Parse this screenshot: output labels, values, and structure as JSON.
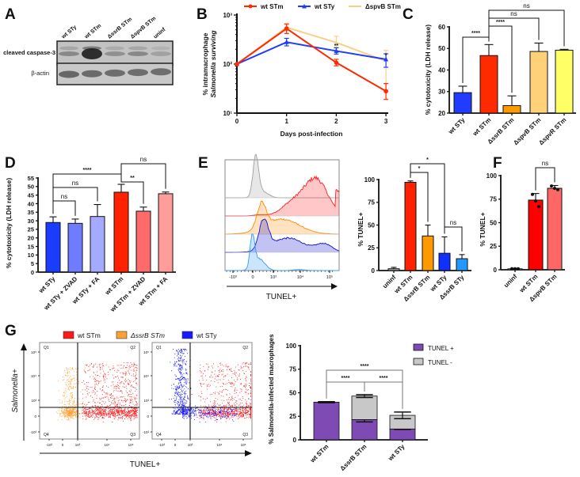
{
  "panel_labels": [
    "A",
    "B",
    "C",
    "D",
    "E",
    "F",
    "G"
  ],
  "chart_data": [
    {
      "panel": "A",
      "type": "blot",
      "lanes": [
        "wt STy",
        "wt STm",
        "ΔssrB STm",
        "ΔspvB STm",
        "uninf"
      ],
      "rows": [
        "cleaved caspase-3",
        "β-actin"
      ],
      "band_intensity": {
        "cleaved caspase-3": [
          0.35,
          0.9,
          0.3,
          0.35,
          0.2
        ],
        "β-actin": [
          0.65,
          0.62,
          0.6,
          0.6,
          0.6
        ]
      }
    },
    {
      "panel": "B",
      "type": "line",
      "x": [
        0,
        1,
        2,
        3
      ],
      "xticks": [
        0,
        1,
        2,
        3
      ],
      "xlabel": "Days post-infection",
      "ylabel": [
        "% intramacrophage",
        "Salmonella surviving"
      ],
      "yscale": "log",
      "ylim": [
        10,
        1000
      ],
      "yticks": [
        10,
        100,
        1000
      ],
      "ytick_labels": [
        "10¹",
        "10²",
        "10³"
      ],
      "series": [
        {
          "name": "wt STm",
          "color": "#ff2a00",
          "marker": "circle",
          "values": [
            100,
            530,
            107,
            28
          ],
          "lower": [
            100,
            420,
            92,
            19
          ],
          "upper": [
            100,
            660,
            125,
            40
          ]
        },
        {
          "name": "wt STy",
          "color": "#1f3cff",
          "marker": "triangle",
          "values": [
            100,
            280,
            185,
            125
          ],
          "lower": [
            100,
            235,
            160,
            86
          ],
          "upper": [
            100,
            335,
            215,
            162
          ]
        },
        {
          "name": "ΔspvB STm",
          "color": "#f8d085",
          "marker": "none",
          "values": [
            100,
            560,
            275,
            115
          ],
          "lower": [
            100,
            480,
            220,
            40
          ],
          "upper": [
            100,
            640,
            370,
            190
          ]
        }
      ],
      "annotations": [
        {
          "x": 2,
          "label": "**"
        },
        {
          "x": 3,
          "label": "*"
        }
      ],
      "legend": "top"
    },
    {
      "panel": "C",
      "type": "bar",
      "categories": [
        "wt STy",
        "wt STm",
        "ΔssrB STm",
        "ΔspvB STm",
        "ΔspvR STm"
      ],
      "values": [
        29.5,
        46.7,
        23.5,
        48.6,
        49.2
      ],
      "err": [
        3,
        5.1,
        4.5,
        3.9,
        0.4
      ],
      "colors": [
        "#1f3cff",
        "#ff2a00",
        "#ff9900",
        "#ffd27a",
        "#ffff66"
      ],
      "ylabel": "% cytotoxicity (LDH release)",
      "ylim": [
        20,
        60
      ],
      "yticks": [
        20,
        30,
        40,
        50,
        60
      ],
      "comparisons": [
        {
          "from": 0,
          "to": 1,
          "label": "****"
        },
        {
          "from": 1,
          "to": 2,
          "label": "****"
        },
        {
          "from": 1,
          "to": 3,
          "label": "ns"
        },
        {
          "from": 1,
          "to": 4,
          "label": "ns"
        }
      ]
    },
    {
      "panel": "D",
      "type": "bar",
      "categories": [
        "wt STy",
        "wt STy + ZVAD",
        "wt STy + FA",
        "wt STm",
        "wt STm + ZVAD",
        "wt STm + FA"
      ],
      "values": [
        29,
        28.5,
        32.5,
        46.7,
        35.6,
        45.8
      ],
      "err": [
        3.3,
        2.5,
        7,
        4.6,
        2.4,
        1
      ],
      "colors": [
        "#1a3cff",
        "#6f7cff",
        "#a3aaff",
        "#ff2200",
        "#ff6b6b",
        "#ff9d9d"
      ],
      "ylabel": "% cytotoxicity (LDH release)",
      "ylim": [
        0,
        55
      ],
      "yticks": [
        0,
        5,
        10,
        15,
        20,
        25,
        30,
        35,
        40,
        45,
        50,
        55
      ],
      "comparisons": [
        {
          "from": 0,
          "to": 1,
          "label": "ns"
        },
        {
          "from": 0,
          "to": 2,
          "label": "ns"
        },
        {
          "from": 0,
          "to": 3,
          "label": "****"
        },
        {
          "from": 3,
          "to": 4,
          "label": "**"
        },
        {
          "from": 3,
          "to": 5,
          "label": "ns"
        }
      ]
    },
    {
      "panel": "E",
      "type": "histogram",
      "xlabel": "TUNEL+",
      "xtick_labels": [
        "-10³",
        "0",
        "10³",
        "10⁴",
        "10⁵"
      ],
      "colors": [
        "#9e9e9e",
        "#ff2020",
        "#ff8c00",
        "#1010d0",
        "#3399ff"
      ]
    },
    {
      "panel": "E",
      "type": "bar",
      "categories": [
        "uninf",
        "wt STm",
        "ΔssrB STm",
        "wt STy",
        "ΔssrB STy"
      ],
      "values": [
        2,
        97,
        38,
        19,
        13
      ],
      "err": [
        1.5,
        1.5,
        12,
        18,
        4.5
      ],
      "colors": [
        "#a8a8a8",
        "#ff2200",
        "#ff9900",
        "#1030ff",
        "#2299ff"
      ],
      "ylabel": "% TUNEL+",
      "ylim": [
        0,
        100
      ],
      "yticks": [
        0,
        25,
        50,
        75,
        100
      ],
      "comparisons": [
        {
          "from": 1,
          "to": 2,
          "label": "*"
        },
        {
          "from": 1,
          "to": 3,
          "label": "*"
        },
        {
          "from": 3,
          "to": 4,
          "label": "ns"
        }
      ]
    },
    {
      "panel": "F",
      "type": "bar",
      "categories": [
        "uninf",
        "wt STm",
        "ΔspvB STm"
      ],
      "values": [
        1,
        74,
        86.5
      ],
      "err": [
        0.5,
        7,
        3
      ],
      "points": [
        [
          1,
          1,
          1
        ],
        [
          80,
          73,
          67
        ],
        [
          89,
          86.5,
          85
        ]
      ],
      "colors": [
        "#ffffff",
        "#ff0000",
        "#ff6666"
      ],
      "ylabel": "% TUNEL+",
      "ylim": [
        0,
        100
      ],
      "yticks": [
        0,
        25,
        50,
        75,
        100
      ],
      "comparisons": [
        {
          "from": 1,
          "to": 2,
          "label": "ns"
        }
      ]
    },
    {
      "panel": "G",
      "type": "scatter",
      "xlabel": "TUNEL+",
      "ylabel": "Salmonella+",
      "legend": [
        {
          "name": "wt STm",
          "color": "#ff1a1a"
        },
        {
          "name": "ΔssrB STm",
          "color": "#ffa033"
        },
        {
          "name": "wt STy",
          "color": "#1a1aff"
        }
      ],
      "quadrants": [
        "Q1",
        "Q2",
        "Q3",
        "Q4"
      ],
      "xtick_labels": [
        "-10³",
        "0",
        "10³",
        "10⁴",
        "10⁵"
      ],
      "ytick_labels": [
        "10⁵",
        "10⁴",
        "10³",
        "0",
        "-10³"
      ],
      "plots": [
        {
          "populations": [
            "wt STm",
            "ΔssrB STm"
          ]
        },
        {
          "populations": [
            "wt STm",
            "wt STy"
          ]
        }
      ]
    },
    {
      "panel": "G",
      "type": "bar",
      "stacked": true,
      "categories": [
        "wt STm",
        "ΔssrB STm",
        "wt STy"
      ],
      "series": [
        {
          "name": "TUNEL +",
          "color": "#7e4bb5",
          "values": [
            40,
            21.5,
            11.5
          ],
          "err": [
            0.5,
            2.5,
            0.5
          ]
        },
        {
          "name": "TUNEL -",
          "color": "#c8c8c8",
          "values": [
            0,
            25,
            14.5
          ],
          "err": [
            0.5,
            1.5,
            3.5
          ]
        }
      ],
      "ylabel": "% Salmonella-infected macrophages",
      "ylim": [
        0,
        100
      ],
      "yticks": [
        0,
        25,
        50,
        75,
        100
      ],
      "legend": "right",
      "comparisons": [
        {
          "from": 0,
          "to": 1,
          "label": "****"
        },
        {
          "from": 1,
          "to": 2,
          "label": "****"
        },
        {
          "from": 0,
          "to": 2,
          "label": "****"
        }
      ]
    }
  ]
}
